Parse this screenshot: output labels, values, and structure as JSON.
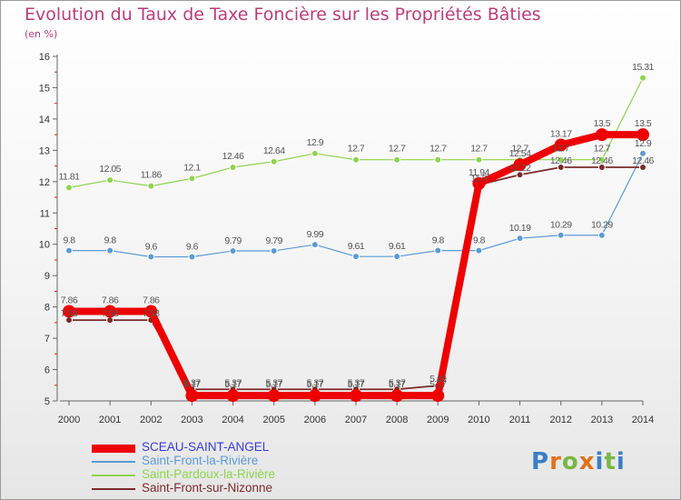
{
  "title": "Evolution du Taux de Taxe Foncière sur les Propriétés Bâties",
  "subtitle": "(en %)",
  "logo": {
    "text": "Proxiti",
    "colors": [
      "#3a7fc4",
      "#e0721a",
      "#7ab648",
      "#e0721a",
      "#3a7fc4",
      "#7ab648",
      "#3a7fc4"
    ]
  },
  "chart_data": {
    "type": "line",
    "title": "Evolution du Taux de Taxe Foncière sur les Propriétés Bâties",
    "ylabel": "(en %)",
    "xlabel": "",
    "x": [
      "2000",
      "2001",
      "2002",
      "2003",
      "2004",
      "2005",
      "2006",
      "2007",
      "2008",
      "2009",
      "2010",
      "2011",
      "2012",
      "2013",
      "2014"
    ],
    "ylim": [
      5,
      16
    ],
    "yticks": [
      "5",
      "6",
      "7",
      "8",
      "9",
      "10",
      "11",
      "12",
      "13",
      "14",
      "15",
      "16"
    ],
    "grid": false,
    "series": [
      {
        "name": "SCEAU-SAINT-ANGEL",
        "color": "#ee0000",
        "labelColor": "#555555",
        "values": [
          7.86,
          7.86,
          7.86,
          5.17,
          5.17,
          5.17,
          5.17,
          5.17,
          5.17,
          5.17,
          11.94,
          12.54,
          13.17,
          13.5,
          13.5
        ],
        "labels": [
          "7.86",
          "7.86",
          "7.86",
          "5.17",
          "5.17",
          "5.17",
          "5.17",
          "5.17",
          "5.17",
          "5.17",
          "11.94",
          "12.54",
          "13.17",
          "13.5",
          "13.5"
        ]
      },
      {
        "name": "Saint-Front-la-Rivière",
        "color": "#5b9bd5",
        "labelColor": "#555555",
        "values": [
          9.8,
          9.8,
          9.6,
          9.6,
          9.79,
          9.79,
          9.99,
          9.61,
          9.61,
          9.8,
          9.8,
          10.19,
          10.29,
          10.29,
          12.9
        ],
        "labels": [
          "9.8",
          "9.8",
          "9.6",
          "9.6",
          "9.79",
          "9.79",
          "9.99",
          "9.61",
          "9.61",
          "9.8",
          "9.8",
          "10.19",
          "10.29",
          "10.29",
          "12.9"
        ]
      },
      {
        "name": "Saint-Pardoux-la-Rivière",
        "color": "#8ed44f",
        "labelColor": "#555555",
        "values": [
          11.81,
          12.05,
          11.86,
          12.1,
          12.46,
          12.64,
          12.9,
          12.7,
          12.7,
          12.7,
          12.7,
          12.7,
          12.7,
          12.7,
          15.31
        ],
        "labels": [
          "11.81",
          "12.05",
          "11.86",
          "12.1",
          "12.46",
          "12.64",
          "12.9",
          "12.7",
          "12.7",
          "12.7",
          "12.7",
          "12.7",
          "12.7",
          "12.7",
          "15.31"
        ]
      },
      {
        "name": "Saint-Front-sur-Nizonne",
        "color": "#7b2a2a",
        "labelColor": "#555555",
        "values": [
          7.58,
          7.58,
          7.58,
          5.37,
          5.37,
          5.37,
          5.37,
          5.37,
          5.37,
          5.49,
          11.9,
          12.22,
          12.46,
          12.46,
          12.46
        ],
        "labels": [
          "7.58",
          "7.58",
          "7.58",
          "5.37",
          "5.37",
          "5.37",
          "5.37",
          "5.37",
          "5.37",
          "5.49",
          "11.9",
          "12.22",
          "12.46",
          "12.46",
          "12.46"
        ]
      }
    ],
    "legend": {
      "position": "bottom-left",
      "entries": [
        "SCEAU-SAINT-ANGEL",
        "Saint-Front-la-Rivière",
        "Saint-Pardoux-la-Rivière",
        "Saint-Front-sur-Nizonne"
      ],
      "colors": [
        "#3b3bd6",
        "#5b9bd5",
        "#8ed44f",
        "#7b2a2a"
      ]
    }
  }
}
